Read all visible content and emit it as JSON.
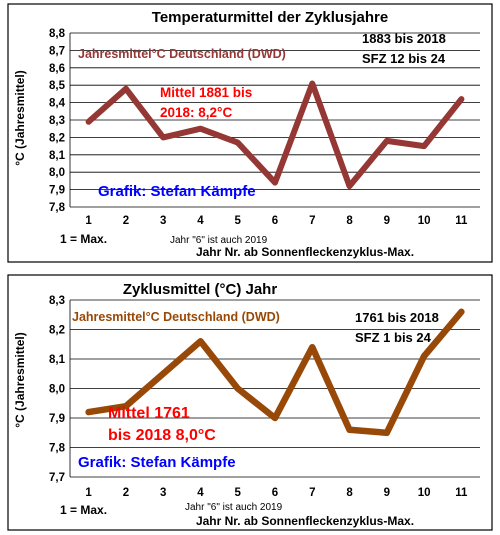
{
  "chart_data": [
    {
      "type": "line",
      "title": "Temperaturmittel der Zyklusjahre",
      "ylabel": "°C (Jahresmittel)",
      "xlabel": "Jahr Nr. ab Sonnenfleckenzyklus-Max.",
      "x": [
        1,
        2,
        3,
        4,
        5,
        6,
        7,
        8,
        9,
        10,
        11
      ],
      "ylim": [
        7.8,
        8.8
      ],
      "yticks": [
        "7,8",
        "7,9",
        "8,0",
        "8,1",
        "8,2",
        "8,3",
        "8,4",
        "8,5",
        "8,6",
        "8,7",
        "8,8"
      ],
      "grid": true,
      "series": [
        {
          "name": "Jahresmittel°C Deutschland (DWD)",
          "color": "#953735",
          "values": [
            8.29,
            8.48,
            8.2,
            8.25,
            8.17,
            7.94,
            8.51,
            7.92,
            8.18,
            8.15,
            8.42
          ]
        }
      ],
      "annotations": {
        "range_line1": "1883 bis 2018",
        "range_line2": "SFZ 12 bis 24",
        "mean_line1": "Mittel 1881 bis",
        "mean_line2": "2018: 8,2°C",
        "credit": "Grafik: Stefan Kämpfe",
        "max_note": "1 = Max.",
        "year_note": "Jahr \"6\"  ist auch 2019"
      }
    },
    {
      "type": "line",
      "title": "Zyklusmittel (°C) Jahr",
      "ylabel": "°C (Jahresmittel)",
      "xlabel": "Jahr Nr. ab Sonnenfleckenzyklus-Max.",
      "x": [
        1,
        2,
        3,
        4,
        5,
        6,
        7,
        8,
        9,
        10,
        11
      ],
      "ylim": [
        7.7,
        8.3
      ],
      "yticks": [
        "7,7",
        "7,8",
        "7,9",
        "8,0",
        "8,1",
        "8,2",
        "8,3"
      ],
      "grid": true,
      "series": [
        {
          "name": "Jahresmittel°C Deutschland (DWD)",
          "color": "#984807",
          "values": [
            7.92,
            7.94,
            8.05,
            8.16,
            8.0,
            7.9,
            8.14,
            7.86,
            7.85,
            8.11,
            8.26
          ]
        }
      ],
      "annotations": {
        "range_line1": "1761 bis 2018",
        "range_line2": "SFZ 1 bis 24",
        "mean_line1": "Mittel 1761",
        "mean_line2": "bis 2018 8,0°C",
        "credit": "Grafik: Stefan Kämpfe",
        "max_note": "1 = Max.",
        "year_note": "Jahr \"6\"  ist auch 2019"
      }
    }
  ]
}
